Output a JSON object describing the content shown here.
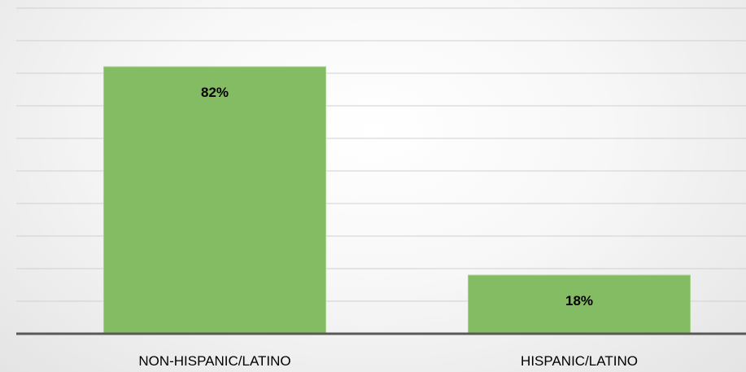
{
  "chart_data": {
    "type": "bar",
    "categories": [
      "NON-HISPANIC/LATINO",
      "HISPANIC/LATINO"
    ],
    "values": [
      82,
      18
    ],
    "data_labels": [
      "82%",
      "18%"
    ],
    "title": "",
    "xlabel": "",
    "ylabel": "",
    "ylim": [
      0,
      100
    ],
    "grid": true,
    "legend": "none",
    "colors": {
      "bar": "#84bc63",
      "bar_edge": "#a9d18e",
      "grid": "#d0d0d0",
      "axis": "#595959"
    }
  }
}
